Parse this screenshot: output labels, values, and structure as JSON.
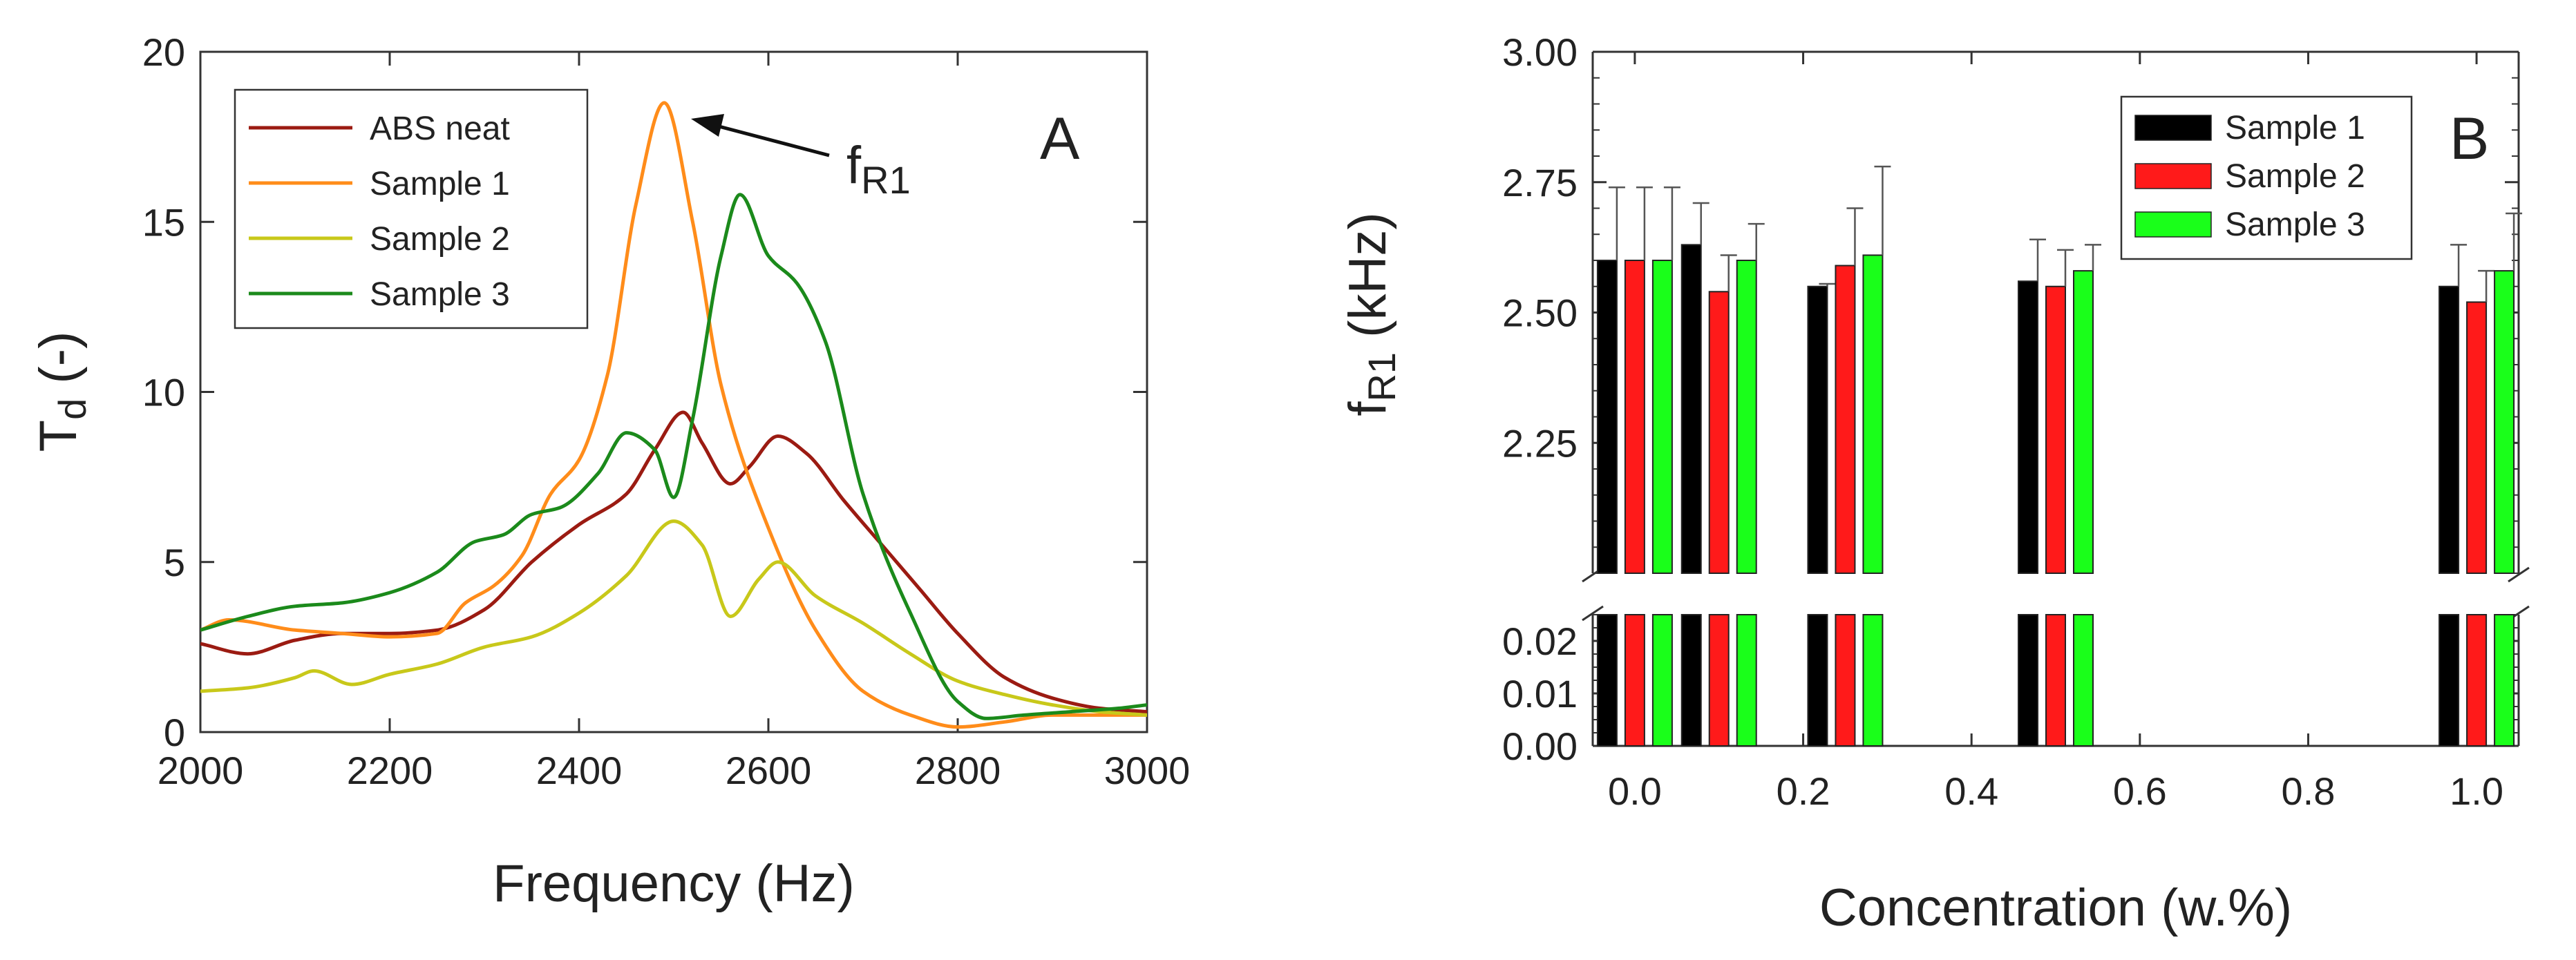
{
  "chart_data": [
    {
      "id": "A",
      "type": "line",
      "panel_label": "A",
      "xlabel": "Frequency (Hz)",
      "ylabel_main": "T",
      "ylabel_sub": "d",
      "ylabel_suffix": " (-)",
      "xlim": [
        2000,
        3000
      ],
      "ylim": [
        0,
        20
      ],
      "xticks": [
        2000,
        2200,
        2400,
        2600,
        2800,
        3000
      ],
      "yticks": [
        0,
        5,
        10,
        15,
        20
      ],
      "annotation": {
        "text_main": "f",
        "text_sub": "R1",
        "points_to": [
          2490,
          18.5
        ]
      },
      "series": [
        {
          "name": "ABS neat",
          "color": "#9b1b12",
          "x": [
            2000,
            2050,
            2100,
            2150,
            2200,
            2250,
            2300,
            2350,
            2400,
            2450,
            2480,
            2510,
            2530,
            2560,
            2580,
            2610,
            2640,
            2680,
            2720,
            2760,
            2800,
            2850,
            2900,
            2950,
            3000
          ],
          "y": [
            2.6,
            2.3,
            2.7,
            2.9,
            2.9,
            3.0,
            3.6,
            5.0,
            6.1,
            7.0,
            8.3,
            9.4,
            8.5,
            7.3,
            7.8,
            8.7,
            8.2,
            6.8,
            5.5,
            4.2,
            2.9,
            1.6,
            1.0,
            0.7,
            0.6
          ]
        },
        {
          "name": "Sample 1",
          "color": "#ff8c1a",
          "x": [
            2000,
            2030,
            2100,
            2150,
            2200,
            2250,
            2280,
            2310,
            2340,
            2370,
            2400,
            2430,
            2460,
            2490,
            2520,
            2550,
            2600,
            2650,
            2700,
            2750,
            2800,
            2850,
            2900,
            2950,
            3000
          ],
          "y": [
            3.0,
            3.3,
            3.0,
            2.9,
            2.8,
            2.9,
            3.8,
            4.3,
            5.2,
            7.0,
            8.0,
            10.5,
            15.5,
            18.5,
            15.0,
            10.2,
            6.0,
            3.0,
            1.2,
            0.5,
            0.15,
            0.3,
            0.5,
            0.5,
            0.5
          ]
        },
        {
          "name": "Sample 2",
          "color": "#c8c81a",
          "x": [
            2000,
            2050,
            2100,
            2120,
            2160,
            2200,
            2250,
            2300,
            2350,
            2400,
            2450,
            2500,
            2530,
            2560,
            2590,
            2610,
            2650,
            2700,
            2750,
            2800,
            2850,
            2900,
            2950,
            3000
          ],
          "y": [
            1.2,
            1.3,
            1.6,
            1.8,
            1.4,
            1.7,
            2.0,
            2.5,
            2.8,
            3.5,
            4.6,
            6.2,
            5.5,
            3.4,
            4.5,
            5.0,
            4.0,
            3.2,
            2.3,
            1.5,
            1.1,
            0.8,
            0.6,
            0.5
          ]
        },
        {
          "name": "Sample 3",
          "color": "#1b8a1b",
          "x": [
            2000,
            2050,
            2100,
            2150,
            2200,
            2250,
            2290,
            2320,
            2350,
            2380,
            2420,
            2450,
            2480,
            2500,
            2520,
            2550,
            2570,
            2600,
            2630,
            2660,
            2700,
            2750,
            2800,
            2830,
            2870,
            2920,
            2970,
            3000
          ],
          "y": [
            3.0,
            3.4,
            3.7,
            3.8,
            4.1,
            4.7,
            5.6,
            5.8,
            6.4,
            6.6,
            7.6,
            8.8,
            8.3,
            6.9,
            9.2,
            14.0,
            15.8,
            14.0,
            13.2,
            11.5,
            7.0,
            3.5,
            0.9,
            0.4,
            0.5,
            0.6,
            0.7,
            0.8
          ]
        }
      ]
    },
    {
      "id": "B",
      "type": "bar",
      "panel_label": "B",
      "xlabel": "Concentration (w.%)",
      "ylabel_main": "f",
      "ylabel_sub": "R1",
      "ylabel_suffix": " (kHz)",
      "xlim": [
        -0.05,
        1.05
      ],
      "xticks": [
        0.0,
        0.2,
        0.4,
        0.6,
        0.8,
        1.0
      ],
      "xtick_labels": [
        "0.0",
        "0.2",
        "0.4",
        "0.6",
        "0.8",
        "1.0"
      ],
      "upper_ylim": [
        2.0,
        3.0
      ],
      "upper_yticks": [
        2.25,
        2.5,
        2.75,
        3.0
      ],
      "upper_ytick_labels": [
        "2.25",
        "2.50",
        "2.75",
        "3.00"
      ],
      "lower_ylim": [
        0.0,
        0.025
      ],
      "lower_yticks": [
        0.0,
        0.01,
        0.02
      ],
      "lower_ytick_labels": [
        "0.00",
        "0.01",
        "0.02"
      ],
      "categories": [
        0.0,
        0.1,
        0.25,
        0.5,
        1.0
      ],
      "series": [
        {
          "name": "Sample 1",
          "color": "#000000",
          "values": [
            2.6,
            2.63,
            2.55,
            2.56,
            2.55
          ],
          "errors": [
            0.14,
            0.08,
            0.005,
            0.08,
            0.08
          ]
        },
        {
          "name": "Sample 2",
          "color": "#ff1a1a",
          "values": [
            2.6,
            2.54,
            2.59,
            2.55,
            2.52
          ],
          "errors": [
            0.14,
            0.07,
            0.11,
            0.07,
            0.06
          ]
        },
        {
          "name": "Sample 3",
          "color": "#1aff1a",
          "values": [
            2.6,
            2.6,
            2.61,
            2.58,
            2.58
          ],
          "errors": [
            0.14,
            0.07,
            0.17,
            0.05,
            0.11
          ]
        }
      ]
    }
  ]
}
